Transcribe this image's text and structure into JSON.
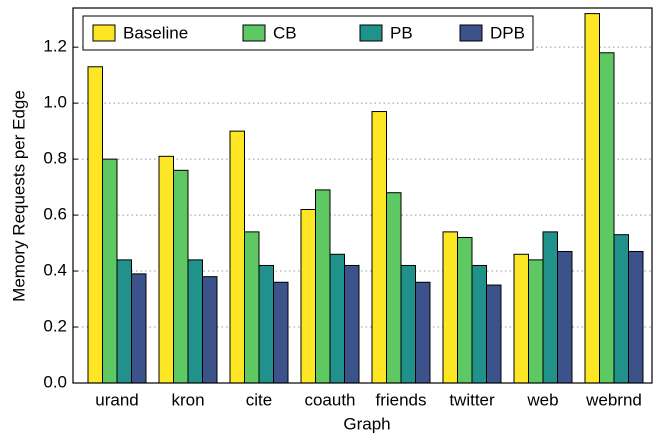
{
  "chart_data": {
    "type": "bar",
    "x_label": "Graph",
    "y_label": "Memory Requests per Edge",
    "categories": [
      "urand",
      "kron",
      "cite",
      "coauth",
      "friends",
      "twitter",
      "web",
      "webrnd"
    ],
    "series": [
      {
        "name": "Baseline",
        "color": "#fde725",
        "values": [
          1.13,
          0.81,
          0.9,
          0.62,
          0.97,
          0.54,
          0.46,
          1.32
        ]
      },
      {
        "name": "CB",
        "color": "#5ec962",
        "values": [
          0.8,
          0.76,
          0.54,
          0.69,
          0.68,
          0.52,
          0.44,
          1.18
        ]
      },
      {
        "name": "PB",
        "color": "#21918c",
        "values": [
          0.44,
          0.44,
          0.42,
          0.46,
          0.42,
          0.42,
          0.54,
          0.53
        ]
      },
      {
        "name": "DPB",
        "color": "#3b528b",
        "values": [
          0.39,
          0.38,
          0.36,
          0.42,
          0.36,
          0.35,
          0.47,
          0.47
        ]
      }
    ],
    "ylim": [
      0,
      1.34
    ],
    "yticks": [
      {
        "value": 0,
        "label": "0.0"
      },
      {
        "value": 0.2,
        "label": "0.2"
      },
      {
        "value": 0.4,
        "label": "0.4"
      },
      {
        "value": 0.6,
        "label": "0.6"
      },
      {
        "value": 0.8,
        "label": "0.8"
      },
      {
        "value": 1,
        "label": "1.0"
      },
      {
        "value": 1.2,
        "label": "1.2"
      }
    ],
    "grid": true,
    "legend": "top-left"
  }
}
